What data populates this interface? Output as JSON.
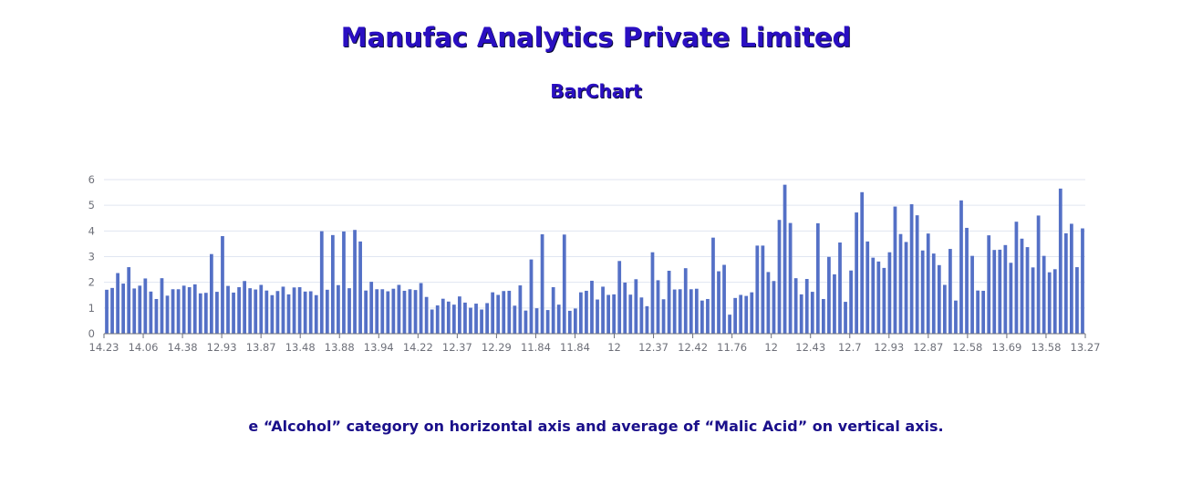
{
  "header": {
    "title": "Manufac Analytics Private Limited",
    "subtitle": "BarChart"
  },
  "footer": {
    "caption": "e “Alcohol” category on horizontal axis and average of “Malic Acid” on vertical axis."
  },
  "colors": {
    "bar": "#5470c6",
    "grid": "#e0e6f1",
    "axis": "#6e7079",
    "title": "#2a0fc2"
  },
  "chart_data": {
    "type": "bar",
    "title": "BarChart",
    "xlabel": "",
    "ylabel": "",
    "ylim": [
      0,
      6
    ],
    "yticks": [
      0,
      1,
      2,
      3,
      4,
      5,
      6
    ],
    "grid": true,
    "xtick_labels": [
      "14.23",
      "14.06",
      "14.38",
      "12.93",
      "13.87",
      "13.48",
      "13.88",
      "13.94",
      "14.22",
      "12.37",
      "12.29",
      "11.84",
      "11.84",
      "12",
      "12.37",
      "12.42",
      "11.76",
      "12",
      "12.43",
      "12.7",
      "12.93",
      "12.87",
      "12.58",
      "13.69",
      "13.58",
      "13.27"
    ],
    "values": [
      1.71,
      1.78,
      2.36,
      1.95,
      2.59,
      1.76,
      1.87,
      2.15,
      1.64,
      1.35,
      2.16,
      1.48,
      1.73,
      1.73,
      1.87,
      1.81,
      1.92,
      1.57,
      1.59,
      3.1,
      1.63,
      3.8,
      1.86,
      1.6,
      1.81,
      2.05,
      1.77,
      1.72,
      1.9,
      1.68,
      1.5,
      1.66,
      1.83,
      1.53,
      1.8,
      1.81,
      1.64,
      1.65,
      1.5,
      3.99,
      1.71,
      3.84,
      1.89,
      3.98,
      1.77,
      4.04,
      3.59,
      1.68,
      2.02,
      1.73,
      1.73,
      1.65,
      1.75,
      1.9,
      1.67,
      1.73,
      1.7,
      1.97,
      1.43,
      0.94,
      1.1,
      1.36,
      1.25,
      1.13,
      1.45,
      1.21,
      1.01,
      1.17,
      0.94,
      1.19,
      1.61,
      1.51,
      1.66,
      1.67,
      1.09,
      1.88,
      0.9,
      2.89,
      0.99,
      3.87,
      0.92,
      1.81,
      1.13,
      3.86,
      0.89,
      0.98,
      1.61,
      1.67,
      2.06,
      1.33,
      1.83,
      1.51,
      1.53,
      2.83,
      1.99,
      1.52,
      2.12,
      1.41,
      1.07,
      3.17,
      2.08,
      1.34,
      2.45,
      1.72,
      1.73,
      2.55,
      1.73,
      1.75,
      1.29,
      1.35,
      3.74,
      2.43,
      2.68,
      0.74,
      1.39,
      1.51,
      1.47,
      1.61,
      3.43,
      3.43,
      2.4,
      2.05,
      4.43,
      5.8,
      4.31,
      2.16,
      1.53,
      2.13,
      1.63,
      4.3,
      1.35,
      2.99,
      2.31,
      3.55,
      1.24,
      2.46,
      4.72,
      5.51,
      3.59,
      2.96,
      2.81,
      2.56,
      3.17,
      4.95,
      3.88,
      3.57,
      5.04,
      4.61,
      3.24,
      3.9,
      3.12,
      2.67,
      1.9,
      3.3,
      1.29,
      5.19,
      4.12,
      3.03,
      1.68,
      1.67,
      3.83,
      3.26,
      3.27,
      3.45,
      2.76,
      4.36,
      3.7,
      3.37,
      2.58,
      4.6,
      3.03,
      2.39,
      2.51,
      5.65,
      3.91,
      4.28,
      2.59,
      4.1
    ]
  }
}
